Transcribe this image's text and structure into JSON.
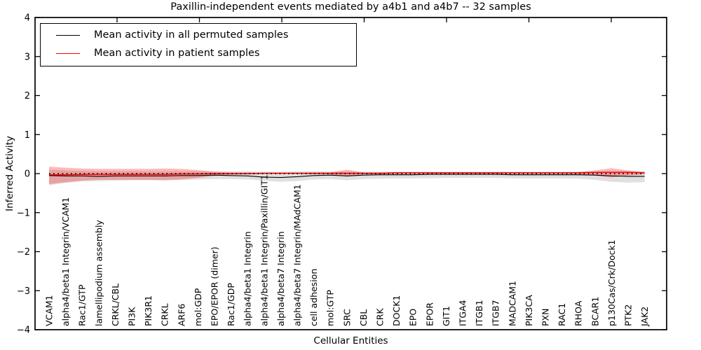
{
  "title": "Paxillin-independent events mediated by a4b1 and a4b7 -- 32 samples",
  "legend": {
    "entries": [
      {
        "label": "Mean activity in all permuted samples",
        "color": "#000000"
      },
      {
        "label": "Mean activity in patient samples",
        "color": "#ff0000"
      }
    ]
  },
  "chart_data": {
    "type": "line",
    "title": "Paxillin-independent events mediated by a4b1 and a4b7 -- 32 samples",
    "xlabel": "Cellular Entities",
    "ylabel": "Inferred Activity",
    "ylim": [
      -4,
      4
    ],
    "yticks": [
      4,
      3,
      2,
      1,
      0,
      -1,
      -2,
      -3,
      -4
    ],
    "grid": false,
    "legend_position": "upper left",
    "zero_line": true,
    "categories": [
      "VCAM1",
      "alpha4/beta1 Integrin/VCAM1",
      "Rac1/GTP",
      "lamellipodium assembly",
      "CRKL/CBL",
      "PI3K",
      "PIK3R1",
      "CRKL",
      "ARF6",
      "mol:GDP",
      "EPO/EPOR (dimer)",
      "Rac1/GDP",
      "alpha4/beta1 Integrin",
      "alpha4/beta1 Integrin/Paxillin/GIT1",
      "alpha4/beta7 Integrin",
      "alpha4/beta7 Integrin/MAdCAM1",
      "cell adhesion",
      "mol:GTP",
      "SRC",
      "CBL",
      "CRK",
      "DOCK1",
      "EPO",
      "EPOR",
      "GIT1",
      "ITGA4",
      "ITGB1",
      "ITGB7",
      "MADCAM1",
      "PIK3CA",
      "PXN",
      "RAC1",
      "RHOA",
      "BCAR1",
      "p130Cas/Crk/Dock1",
      "PTK2",
      "JAK2"
    ],
    "series": [
      {
        "name": "Mean activity in all permuted samples",
        "color": "#000000",
        "band_color": "rgba(0,0,0,0.12)",
        "values": [
          -0.05,
          -0.06,
          -0.06,
          -0.07,
          -0.06,
          -0.06,
          -0.06,
          -0.06,
          -0.05,
          -0.05,
          -0.04,
          -0.05,
          -0.06,
          -0.09,
          -0.1,
          -0.08,
          -0.05,
          -0.04,
          -0.06,
          -0.04,
          -0.03,
          -0.03,
          -0.03,
          -0.02,
          -0.02,
          -0.02,
          -0.02,
          -0.02,
          -0.03,
          -0.03,
          -0.03,
          -0.03,
          -0.03,
          -0.04,
          -0.06,
          -0.07,
          -0.07
        ],
        "band_upper": [
          0.1,
          0.08,
          0.07,
          0.06,
          0.06,
          0.06,
          0.06,
          0.06,
          0.06,
          0.06,
          0.06,
          0.06,
          0.06,
          0.05,
          0.05,
          0.06,
          0.06,
          0.06,
          0.05,
          0.05,
          0.05,
          0.05,
          0.05,
          0.05,
          0.05,
          0.05,
          0.05,
          0.05,
          0.05,
          0.05,
          0.05,
          0.05,
          0.05,
          0.06,
          0.07,
          0.07,
          0.06
        ],
        "band_lower": [
          -0.3,
          -0.24,
          -0.2,
          -0.19,
          -0.18,
          -0.17,
          -0.17,
          -0.17,
          -0.16,
          -0.15,
          -0.14,
          -0.14,
          -0.15,
          -0.18,
          -0.21,
          -0.19,
          -0.15,
          -0.14,
          -0.17,
          -0.14,
          -0.13,
          -0.12,
          -0.12,
          -0.12,
          -0.11,
          -0.11,
          -0.11,
          -0.11,
          -0.12,
          -0.12,
          -0.12,
          -0.12,
          -0.13,
          -0.16,
          -0.21,
          -0.23,
          -0.22
        ]
      },
      {
        "name": "Mean activity in patient samples",
        "color": "#ff0000",
        "band_color": "rgba(255,0,0,0.28)",
        "values": [
          -0.03,
          -0.03,
          -0.02,
          -0.02,
          -0.02,
          -0.02,
          -0.02,
          -0.02,
          -0.01,
          -0.01,
          0.0,
          0.0,
          0.0,
          0.01,
          0.01,
          0.01,
          0.01,
          0.01,
          0.01,
          0.01,
          0.01,
          0.02,
          0.02,
          0.02,
          0.02,
          0.02,
          0.02,
          0.02,
          0.02,
          0.02,
          0.02,
          0.02,
          0.02,
          0.03,
          0.03,
          0.03,
          0.02
        ],
        "band_upper": [
          0.18,
          0.15,
          0.13,
          0.12,
          0.12,
          0.12,
          0.12,
          0.13,
          0.12,
          0.09,
          0.05,
          0.03,
          0.03,
          0.02,
          0.02,
          0.02,
          0.03,
          0.03,
          0.1,
          0.03,
          0.03,
          0.03,
          0.03,
          0.03,
          0.03,
          0.03,
          0.03,
          0.03,
          0.03,
          0.03,
          0.03,
          0.03,
          0.04,
          0.08,
          0.14,
          0.08,
          0.04
        ],
        "band_lower": [
          -0.27,
          -0.22,
          -0.18,
          -0.16,
          -0.16,
          -0.16,
          -0.16,
          -0.17,
          -0.15,
          -0.11,
          -0.06,
          -0.03,
          -0.02,
          -0.01,
          -0.01,
          -0.01,
          -0.02,
          -0.02,
          -0.08,
          -0.02,
          -0.02,
          -0.01,
          -0.01,
          -0.01,
          -0.01,
          -0.01,
          -0.01,
          -0.01,
          -0.01,
          -0.01,
          -0.01,
          -0.01,
          -0.02,
          -0.05,
          -0.1,
          -0.05,
          -0.02
        ]
      }
    ]
  }
}
